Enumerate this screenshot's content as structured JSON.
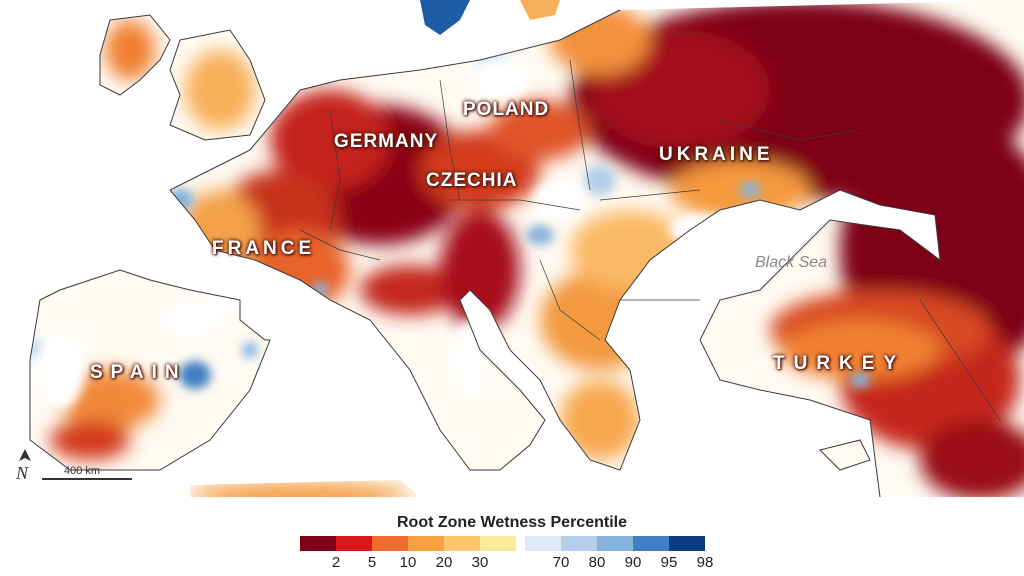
{
  "map": {
    "labels": {
      "germany": "GERMANY",
      "poland": "POLAND",
      "czechia": "CZECHIA",
      "ukraine": "UKRAINE",
      "france": "FRANCE",
      "spain": "SPAIN",
      "turkey": "TURKEY",
      "black_sea": "Black Sea"
    },
    "scale_bar_label": "400 km",
    "north_arrow_icon": "north-arrow-icon"
  },
  "legend": {
    "title": "Root Zone Wetness Percentile",
    "dry_colors": [
      "#7e0016",
      "#d7191c",
      "#f26b2e",
      "#f9a040",
      "#fcc66a",
      "#fde99a"
    ],
    "wet_colors": [
      "#deeaf6",
      "#b3cfe9",
      "#86b3db",
      "#3f7fc2",
      "#0b3b7d"
    ],
    "dry_ticks": [
      "2",
      "5",
      "10",
      "20",
      "30"
    ],
    "wet_ticks": [
      "70",
      "80",
      "90",
      "95",
      "98"
    ]
  }
}
